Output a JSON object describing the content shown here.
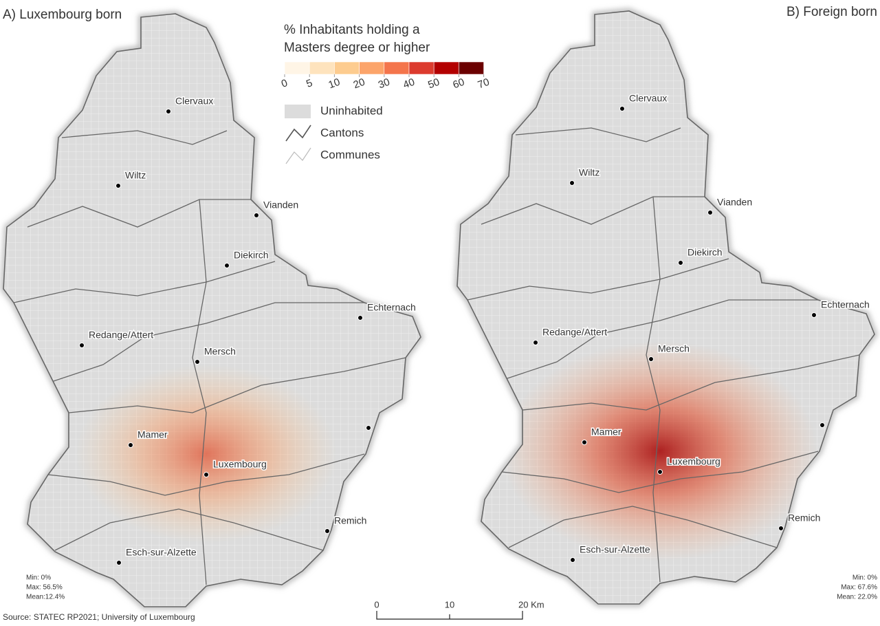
{
  "panels": [
    {
      "title": "A) Luxembourg born",
      "cities": [
        "Clervaux",
        "Wiltz",
        "Vianden",
        "Diekirch",
        "Echternach",
        "Redange/Attert",
        "Mersch",
        "Mamer",
        "Luxembourg",
        "Remich",
        "Esch-sur-Alzette"
      ],
      "stats": [
        "Min: 0%",
        "Max: 56.5%",
        "Mean:12.4%"
      ]
    },
    {
      "title": "B) Foreign born",
      "cities": [
        "Clervaux",
        "Wiltz",
        "Vianden",
        "Diekirch",
        "Echternach",
        "Redange/Attert",
        "Mersch",
        "Mamer",
        "Luxembourg",
        "Remich",
        "Esch-sur-Alzette"
      ],
      "stats": [
        "Min: 0%",
        "Max: 67.6%",
        "Mean: 22.0%"
      ]
    }
  ],
  "legend": {
    "title": [
      "% Inhabitants holding a",
      "Masters degree or higher"
    ],
    "ticks": [
      0,
      5,
      10,
      20,
      30,
      40,
      50,
      60,
      70
    ],
    "colors": [
      "#fff5e6",
      "#fee3bd",
      "#fdcc8f",
      "#fca46a",
      "#f4754c",
      "#dc3b2e",
      "#b30000",
      "#6b0000"
    ],
    "items": [
      "Uninhabited",
      "Cantons",
      "Communes"
    ]
  },
  "scale_bar": {
    "labels": [
      "0",
      "10",
      "20 Km"
    ]
  },
  "source": "Source: STATEC RP2021; University of Luxembourg"
}
